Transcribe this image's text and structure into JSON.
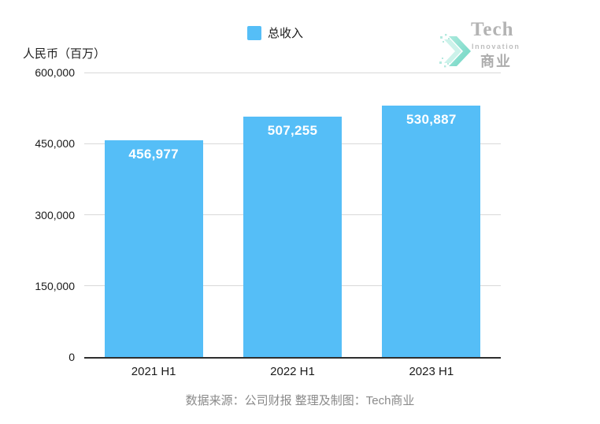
{
  "unit_label": "人民币（百万）",
  "legend": {
    "label": "总收入"
  },
  "caption": "数据来源：公司财报 整理及制图：Tech商业",
  "logo": {
    "title": "Tech",
    "subtitle": "Innovation",
    "cn_name": "商业"
  },
  "colors": {
    "bar": "#55bef7",
    "grid": "#d9d9d9",
    "axis": "#2e2e2e",
    "bar_label": "#ffffff",
    "caption": "#8a8a8a",
    "logo_teal": "#72dac7",
    "logo_teal_light": "#b9ece2",
    "logo_gray": "#a6a6a6"
  },
  "chart_data": {
    "type": "bar",
    "title": "",
    "categories": [
      "2021 H1",
      "2022 H1",
      "2023 H1"
    ],
    "series": [
      {
        "name": "总收入",
        "values": [
          456977,
          507255,
          530887
        ]
      }
    ],
    "value_labels": [
      "456,977",
      "507,255",
      "530,887"
    ],
    "xlabel": "",
    "ylabel": "人民币（百万）",
    "ylim": [
      0,
      600000
    ],
    "yticks": [
      0,
      150000,
      300000,
      450000,
      600000
    ],
    "ytick_labels": [
      "0",
      "150,000",
      "300,000",
      "450,000",
      "600,000"
    ],
    "grid": true,
    "legend_position": "top-center",
    "bar_color": "#55bef7"
  }
}
